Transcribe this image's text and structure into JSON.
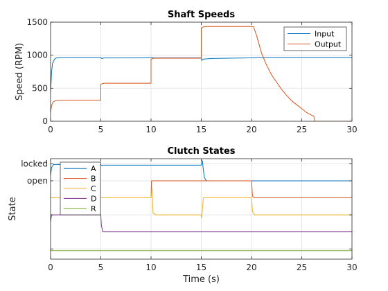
{
  "chart_data": [
    {
      "type": "line",
      "title": "Shaft Speeds",
      "xlabel": "",
      "ylabel": "Speed (RPM)",
      "xlim": [
        0,
        30
      ],
      "ylim": [
        0,
        1500
      ],
      "xticks": [
        0,
        5,
        10,
        15,
        20,
        25,
        30
      ],
      "yticks": [
        0,
        500,
        1000,
        1500
      ],
      "grid": true,
      "legend_position": "top-right",
      "series": [
        {
          "name": "Input",
          "color": "#0072BD",
          "points": [
            [
              0,
              430
            ],
            [
              0.1,
              750
            ],
            [
              0.2,
              880
            ],
            [
              0.4,
              940
            ],
            [
              0.6,
              960
            ],
            [
              1,
              965
            ],
            [
              5,
              965
            ],
            [
              5.1,
              950
            ],
            [
              5.3,
              958
            ],
            [
              10,
              960
            ],
            [
              10.1,
              960
            ],
            [
              15,
              960
            ],
            [
              15.05,
              920
            ],
            [
              15.2,
              940
            ],
            [
              16,
              950
            ],
            [
              20,
              960
            ],
            [
              20.5,
              965
            ],
            [
              30,
              965
            ]
          ]
        },
        {
          "name": "Output",
          "color": "#D95319",
          "points": [
            [
              0,
              140
            ],
            [
              0.1,
              240
            ],
            [
              0.25,
              290
            ],
            [
              0.5,
              315
            ],
            [
              1,
              320
            ],
            [
              5,
              320
            ],
            [
              5,
              560
            ],
            [
              5.3,
              575
            ],
            [
              10,
              575
            ],
            [
              10,
              940
            ],
            [
              10.3,
              955
            ],
            [
              15,
              955
            ],
            [
              15,
              1410
            ],
            [
              15.3,
              1435
            ],
            [
              20,
              1435
            ],
            [
              20.2,
              1430
            ],
            [
              20.5,
              1300
            ],
            [
              21,
              1030
            ],
            [
              21.5,
              850
            ],
            [
              22,
              700
            ],
            [
              22.5,
              590
            ],
            [
              23,
              480
            ],
            [
              23.5,
              390
            ],
            [
              24,
              310
            ],
            [
              24.5,
              250
            ],
            [
              25,
              190
            ],
            [
              25.5,
              130
            ],
            [
              26,
              90
            ],
            [
              26.2,
              80
            ],
            [
              26.3,
              0
            ],
            [
              30,
              0
            ]
          ]
        }
      ]
    },
    {
      "type": "line",
      "title": "Clutch States",
      "xlabel": "Time (s)",
      "ylabel": "State",
      "xlim": [
        0,
        30
      ],
      "ylim": [
        -1.3,
        1.65
      ],
      "xticks": [
        0,
        5,
        10,
        15,
        20,
        25,
        30
      ],
      "yticks": [
        -1,
        0,
        1,
        1.5
      ],
      "ytick_labels": [
        "",
        "",
        "open",
        "locked"
      ],
      "grid": true,
      "legend_position": "top-left",
      "series": [
        {
          "name": "A",
          "color": "#0072BD",
          "points": [
            [
              0,
              1.15
            ],
            [
              0.1,
              1.4
            ],
            [
              0.3,
              1.48
            ],
            [
              5,
              1.48
            ],
            [
              5.05,
              1.45
            ],
            [
              5.2,
              1.46
            ],
            [
              10,
              1.46
            ],
            [
              15,
              1.46
            ],
            [
              15.1,
              1.6
            ],
            [
              15.3,
              1.1
            ],
            [
              15.5,
              1.0
            ],
            [
              30,
              1.0
            ]
          ]
        },
        {
          "name": "B",
          "color": "#D95319",
          "points": [
            [
              0,
              0.5
            ],
            [
              10,
              0.5
            ],
            [
              10.05,
              1.0
            ],
            [
              20,
              1.0
            ],
            [
              20.1,
              0.55
            ],
            [
              20.3,
              0.5
            ],
            [
              30,
              0.5
            ]
          ]
        },
        {
          "name": "C",
          "color": "#EDB120",
          "points": [
            [
              0,
              0.5
            ],
            [
              5,
              0.5
            ],
            [
              5.2,
              0.5
            ],
            [
              10,
              0.5
            ],
            [
              10.1,
              0.8
            ],
            [
              10.2,
              0.05
            ],
            [
              10.5,
              0.0
            ],
            [
              15,
              0.0
            ],
            [
              15.05,
              -0.1
            ],
            [
              15.2,
              0.5
            ],
            [
              20,
              0.5
            ],
            [
              20.1,
              0.1
            ],
            [
              20.3,
              0.0
            ],
            [
              30,
              0.0
            ]
          ]
        },
        {
          "name": "D",
          "color": "#7E2F8E",
          "points": [
            [
              0,
              -0.2
            ],
            [
              0.1,
              0.0
            ],
            [
              5,
              0.0
            ],
            [
              5.05,
              -0.3
            ],
            [
              5.2,
              -0.5
            ],
            [
              30,
              -0.5
            ]
          ]
        },
        {
          "name": "R",
          "color": "#77AC30",
          "points": [
            [
              0,
              -1.05
            ],
            [
              30,
              -1.05
            ]
          ]
        }
      ]
    }
  ]
}
